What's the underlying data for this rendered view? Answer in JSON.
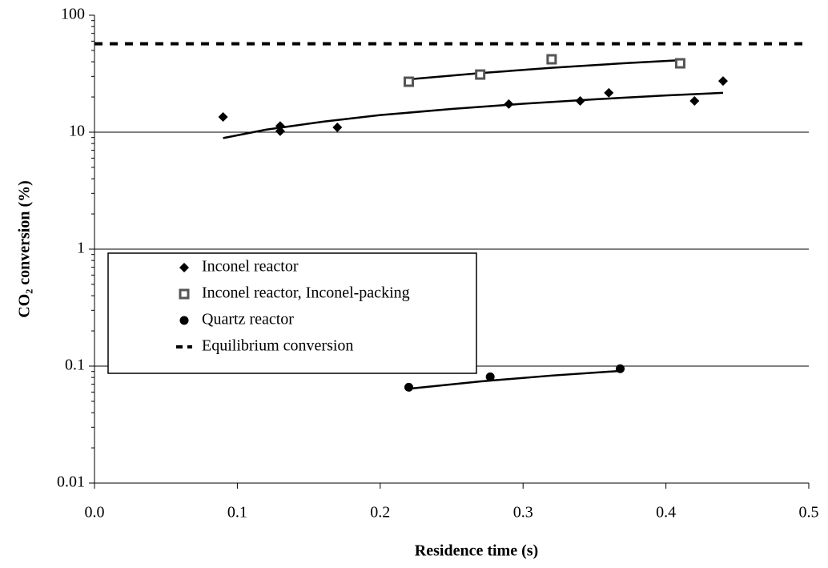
{
  "chart_data": {
    "type": "scatter",
    "xlabel": "Residence time (s)",
    "ylabel": "CO₂ conversion (%)",
    "xlim": [
      0,
      0.5
    ],
    "xticks": [
      {
        "value": 0,
        "label": "0.0"
      },
      0.1,
      0.2,
      0.3,
      0.4,
      0.5
    ],
    "ylim": [
      0.01,
      100
    ],
    "yticks": [
      0.01,
      0.1,
      1,
      10,
      100
    ],
    "log_y": true,
    "grid": true,
    "legend": "lower-left",
    "series": [
      {
        "name": "Inconel reactor",
        "color": "#000000",
        "marker": "diamond",
        "x": [
          0.09,
          0.13,
          0.13,
          0.17,
          0.29,
          0.34,
          0.36,
          0.42,
          0.44
        ],
        "values": [
          13.5,
          11.3,
          10.2,
          11.0,
          17.4,
          18.5,
          21.7,
          18.5,
          27.4
        ],
        "fit": {
          "x": [
            0.09,
            0.12,
            0.16,
            0.2,
            0.25,
            0.3,
            0.35,
            0.4,
            0.44
          ],
          "values": [
            8.9,
            10.5,
            12.3,
            14.0,
            15.8,
            17.5,
            19.1,
            20.6,
            21.7
          ]
        }
      },
      {
        "name": "Inconel reactor, Inconel-packing",
        "color": "#555555",
        "marker": "square",
        "x": [
          0.22,
          0.27,
          0.32,
          0.41
        ],
        "values": [
          27,
          31.1,
          42,
          38.8
        ],
        "fit": {
          "x": [
            0.22,
            0.27,
            0.32,
            0.37,
            0.41
          ],
          "values": [
            28.3,
            32.0,
            35.5,
            38.8,
            41.3
          ]
        }
      },
      {
        "name": "Quartz reactor",
        "color": "#000000",
        "marker": "circle",
        "x": [
          0.22,
          0.277,
          0.368
        ],
        "values": [
          0.066,
          0.081,
          0.095
        ],
        "fit": {
          "x": [
            0.22,
            0.27,
            0.32,
            0.368
          ],
          "values": [
            0.064,
            0.074,
            0.083,
            0.091
          ]
        }
      },
      {
        "name": "Equilibrium conversion",
        "color": "#000000",
        "marker": "dash",
        "x": [
          0,
          0.5
        ],
        "values": [
          57,
          57
        ]
      }
    ]
  }
}
